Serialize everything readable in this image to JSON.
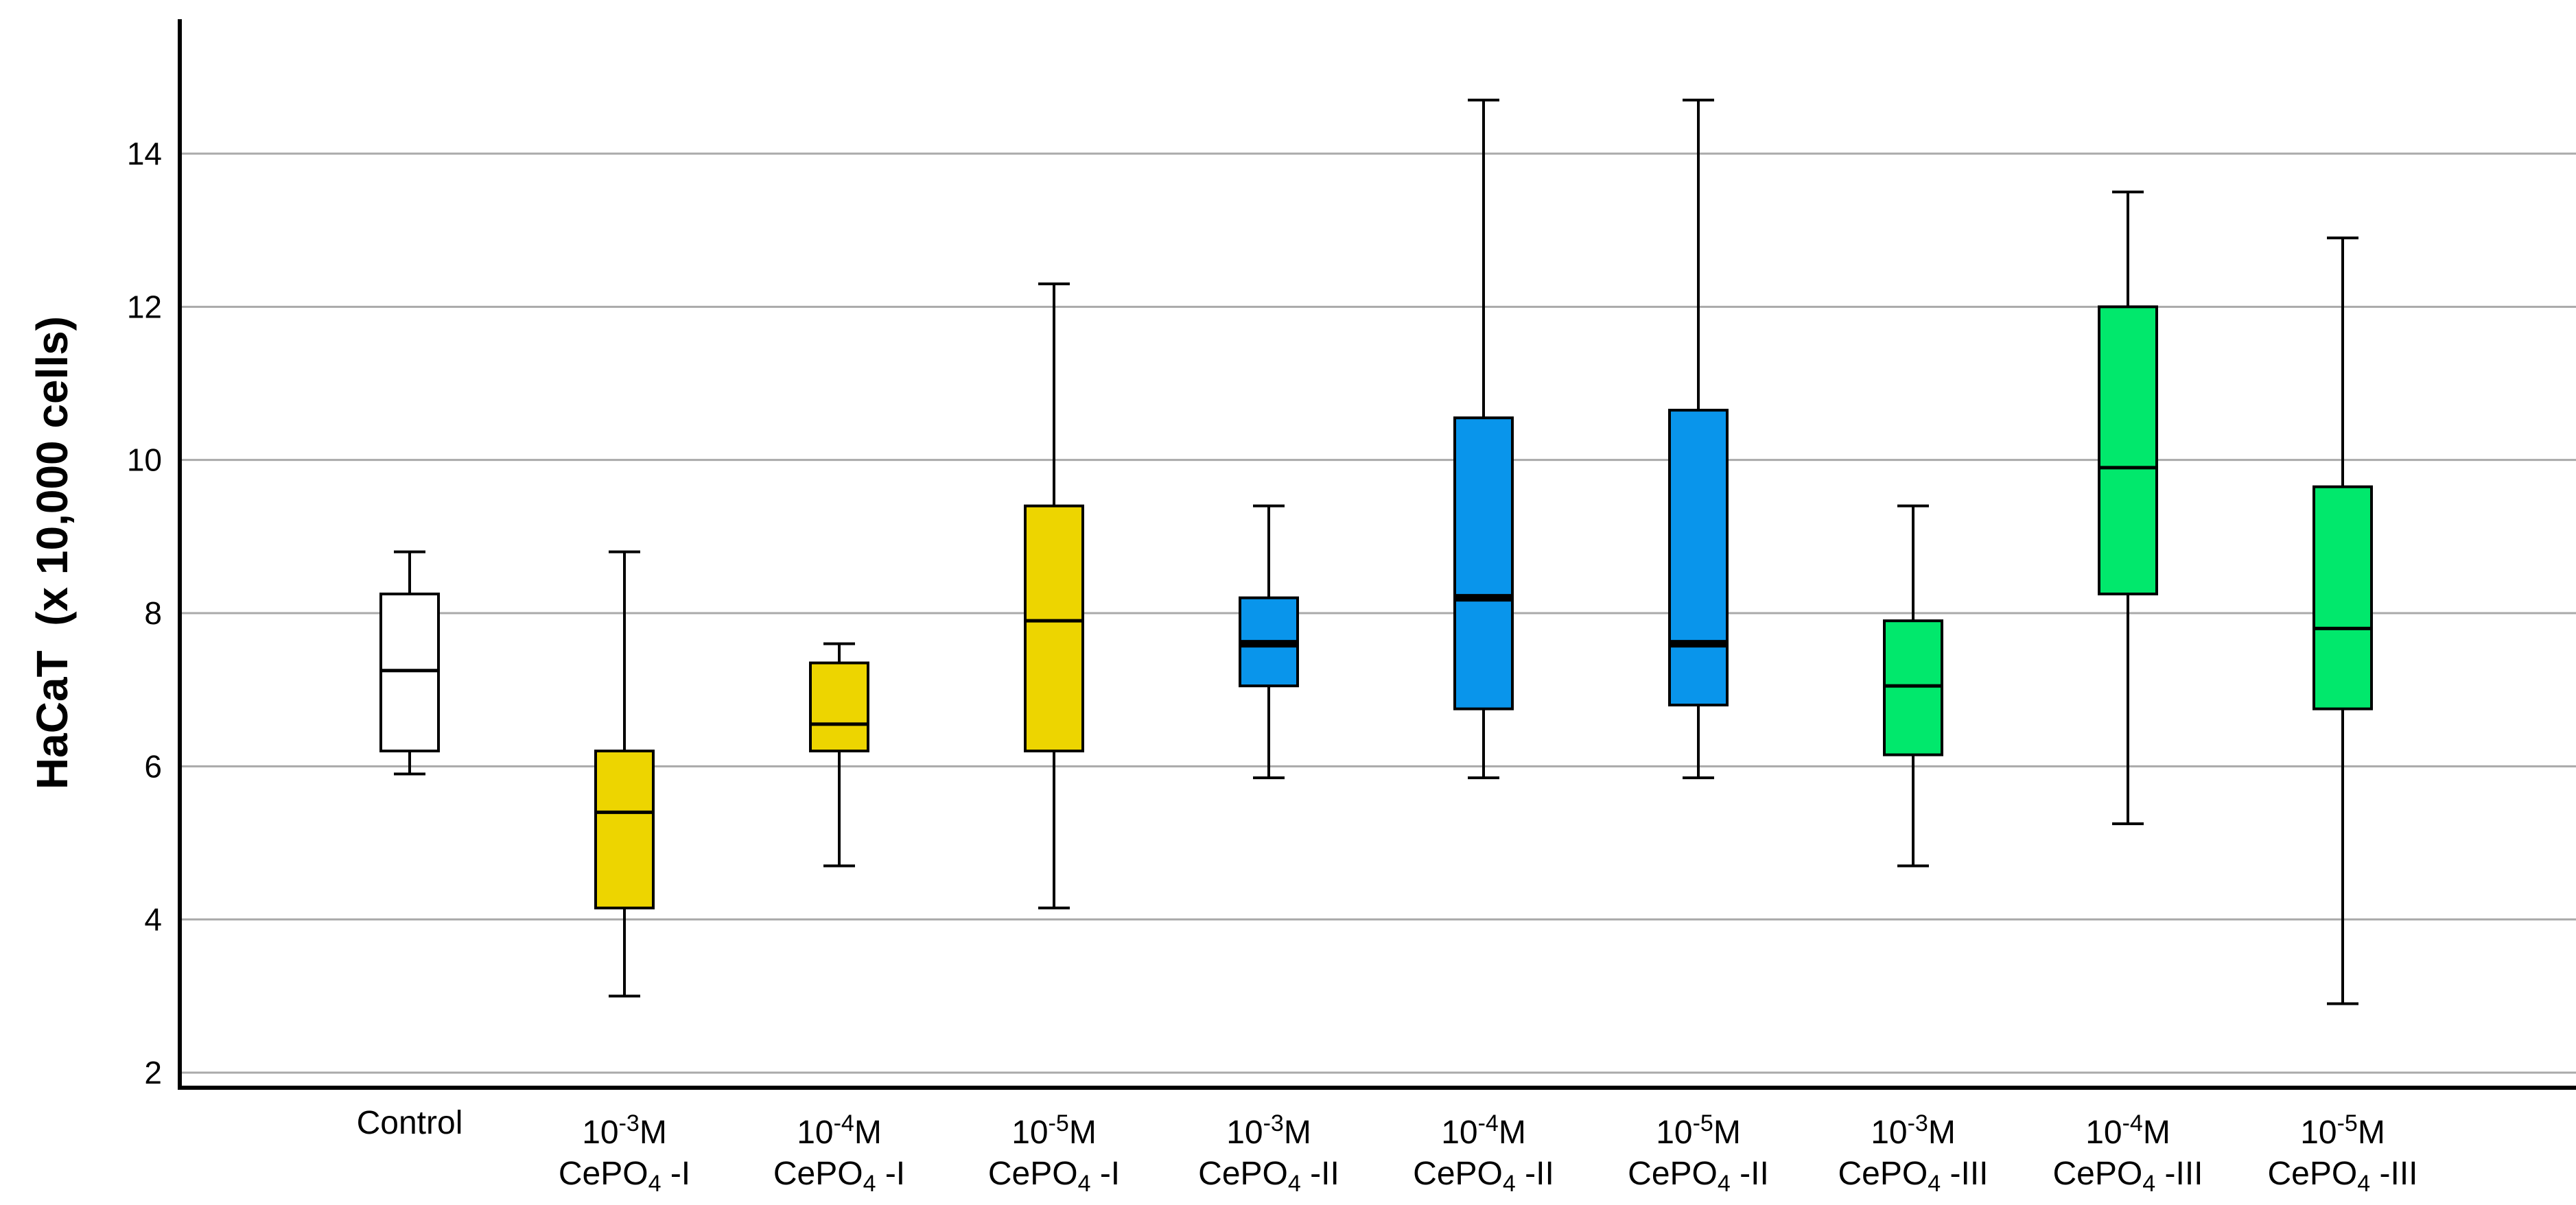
{
  "chart_data": {
    "type": "boxplot",
    "title": "",
    "xlabel": "",
    "ylabel": "HaCaT  (x 10,000 cells)",
    "ylim": [
      2,
      15.4
    ],
    "yticks": [
      2,
      4,
      6,
      8,
      10,
      12,
      14
    ],
    "grid": true,
    "legend_position": "none",
    "grid_color": "#AAAAAA",
    "axis_color": "#000000",
    "series_colors": {
      "control": "#FFFFFF",
      "cepo4_i": "#EDD500",
      "cepo4_ii": "#0995EB",
      "cepo4_iii": "#01E86C"
    },
    "categories": [
      {
        "line1_base": "Control",
        "line1_sup": "",
        "line1_unit": "",
        "line2_base": "",
        "line2_sub": "",
        "line2_tail": ""
      },
      {
        "line1_base": "10",
        "line1_sup": "-3",
        "line1_unit": "M",
        "line2_base": "CePO",
        "line2_sub": "4",
        "line2_tail": " -I"
      },
      {
        "line1_base": "10",
        "line1_sup": "-4",
        "line1_unit": "M",
        "line2_base": "CePO",
        "line2_sub": "4",
        "line2_tail": " -I"
      },
      {
        "line1_base": "10",
        "line1_sup": "-5",
        "line1_unit": "M",
        "line2_base": "CePO",
        "line2_sub": "4",
        "line2_tail": " -I"
      },
      {
        "line1_base": "10",
        "line1_sup": "-3",
        "line1_unit": "M",
        "line2_base": "CePO",
        "line2_sub": "4",
        "line2_tail": " -II"
      },
      {
        "line1_base": "10",
        "line1_sup": "-4",
        "line1_unit": "M",
        "line2_base": "CePO",
        "line2_sub": "4",
        "line2_tail": " -II"
      },
      {
        "line1_base": "10",
        "line1_sup": "-5",
        "line1_unit": "M",
        "line2_base": "CePO",
        "line2_sub": "4",
        "line2_tail": " -II"
      },
      {
        "line1_base": "10",
        "line1_sup": "-3",
        "line1_unit": "M",
        "line2_base": "CePO",
        "line2_sub": "4",
        "line2_tail": " -III"
      },
      {
        "line1_base": "10",
        "line1_sup": "-4",
        "line1_unit": "M",
        "line2_base": "CePO",
        "line2_sub": "4",
        "line2_tail": " -III"
      },
      {
        "line1_base": "10",
        "line1_sup": "-5",
        "line1_unit": "M",
        "line2_base": "CePO",
        "line2_sub": "4",
        "line2_tail": " -III"
      }
    ],
    "boxes": [
      {
        "name": "control",
        "color_key": "control",
        "whisker_low": 5.9,
        "q1": 6.2,
        "median": 7.25,
        "q3": 8.25,
        "whisker_high": 8.8,
        "bold_median": false
      },
      {
        "name": "10-3M-CePO4-I",
        "color_key": "cepo4_i",
        "whisker_low": 3.0,
        "q1": 4.15,
        "median": 5.4,
        "q3": 6.2,
        "whisker_high": 8.8,
        "bold_median": false
      },
      {
        "name": "10-4M-CePO4-I",
        "color_key": "cepo4_i",
        "whisker_low": 4.7,
        "q1": 6.2,
        "median": 6.55,
        "q3": 7.35,
        "whisker_high": 7.6,
        "bold_median": false
      },
      {
        "name": "10-5M-CePO4-I",
        "color_key": "cepo4_i",
        "whisker_low": 4.15,
        "q1": 6.2,
        "median": 7.9,
        "q3": 9.4,
        "whisker_high": 12.3,
        "bold_median": false
      },
      {
        "name": "10-3M-CePO4-II",
        "color_key": "cepo4_ii",
        "whisker_low": 5.85,
        "q1": 7.05,
        "median": 7.6,
        "q3": 8.2,
        "whisker_high": 9.4,
        "bold_median": true
      },
      {
        "name": "10-4M-CePO4-II",
        "color_key": "cepo4_ii",
        "whisker_low": 5.85,
        "q1": 6.75,
        "median": 8.2,
        "q3": 10.55,
        "whisker_high": 14.7,
        "bold_median": true
      },
      {
        "name": "10-5M-CePO4-II",
        "color_key": "cepo4_ii",
        "whisker_low": 5.85,
        "q1": 6.8,
        "median": 7.6,
        "q3": 10.65,
        "whisker_high": 14.7,
        "bold_median": true
      },
      {
        "name": "10-3M-CePO4-III",
        "color_key": "cepo4_iii",
        "whisker_low": 4.7,
        "q1": 6.15,
        "median": 7.05,
        "q3": 7.9,
        "whisker_high": 9.4,
        "bold_median": false
      },
      {
        "name": "10-4M-CePO4-III",
        "color_key": "cepo4_iii",
        "whisker_low": 5.25,
        "q1": 8.25,
        "median": 9.9,
        "q3": 12.0,
        "whisker_high": 13.5,
        "bold_median": false
      },
      {
        "name": "10-5M-CePO4-III",
        "color_key": "cepo4_iii",
        "whisker_low": 2.9,
        "q1": 6.75,
        "median": 7.8,
        "q3": 9.65,
        "whisker_high": 12.9,
        "bold_median": false
      }
    ]
  }
}
